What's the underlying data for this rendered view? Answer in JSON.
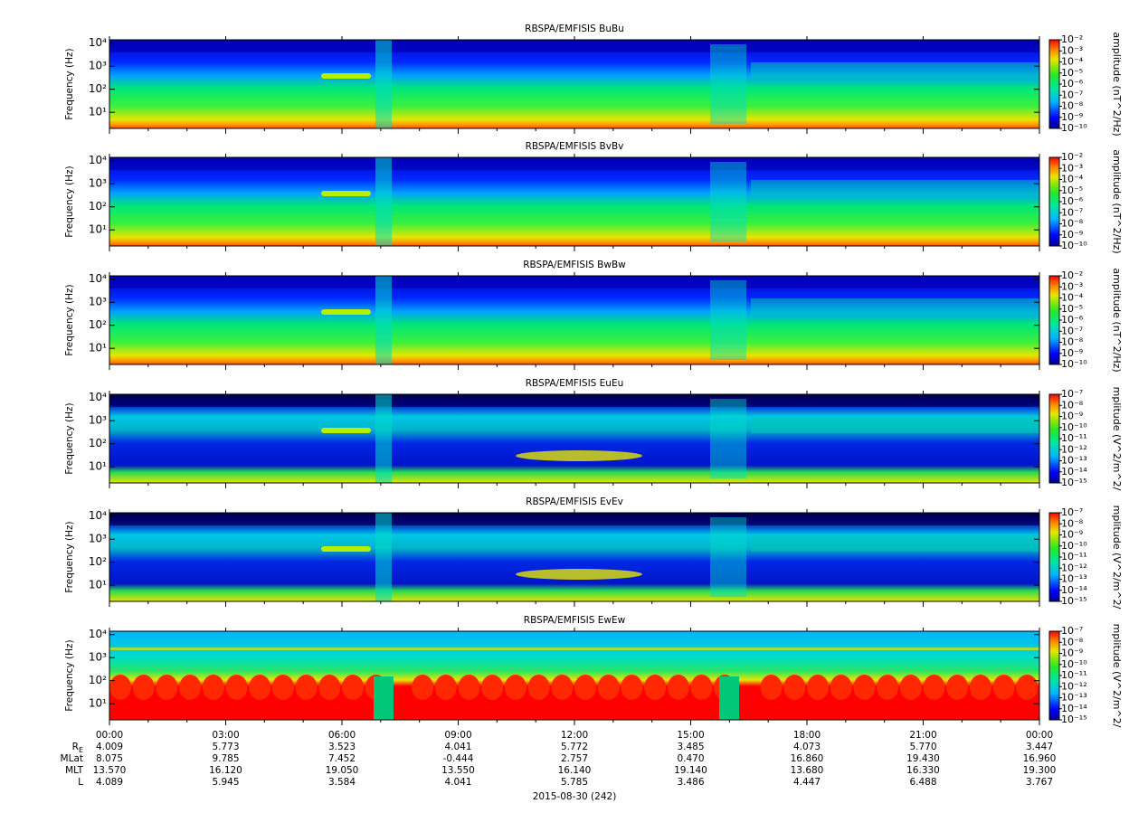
{
  "chart_data": [
    {
      "type": "spectrogram",
      "title": "RBSPA/EMFISIS  BuBu",
      "ylabel": "Frequency (Hz)",
      "ylim": [
        2,
        14000
      ],
      "log": true,
      "yticks": [
        {
          "value": 10,
          "label": "10¹"
        },
        {
          "value": 100,
          "label": "10²"
        },
        {
          "value": 1000,
          "label": "10³"
        },
        {
          "value": 10000,
          "label": "10⁴"
        }
      ],
      "colorbar": {
        "label": "amplitude (nT^2/Hz)",
        "zlim": [
          1e-10,
          0.01
        ],
        "log": true,
        "zticks": [
          {
            "value": 0.01,
            "label": "10⁻²"
          },
          {
            "value": 0.001,
            "label": "10⁻³"
          },
          {
            "value": 0.0001,
            "label": "10⁻⁴"
          },
          {
            "value": 1e-05,
            "label": "10⁻⁵"
          },
          {
            "value": 1e-06,
            "label": "10⁻⁶"
          },
          {
            "value": 1e-07,
            "label": "10⁻⁷"
          },
          {
            "value": 1e-08,
            "label": "10⁻⁸"
          },
          {
            "value": 1e-09,
            "label": "10⁻⁹"
          },
          {
            "value": 1e-10,
            "label": "10⁻¹⁰"
          }
        ]
      }
    },
    {
      "type": "spectrogram",
      "title": "RBSPA/EMFISIS  BvBv",
      "ylabel": "Frequency (Hz)",
      "ylim": [
        2,
        14000
      ],
      "log": true,
      "yticks": [
        {
          "value": 10,
          "label": "10¹"
        },
        {
          "value": 100,
          "label": "10²"
        },
        {
          "value": 1000,
          "label": "10³"
        },
        {
          "value": 10000,
          "label": "10⁴"
        }
      ],
      "colorbar": {
        "label": "amplitude (nT^2/Hz)",
        "zlim": [
          1e-10,
          0.01
        ],
        "log": true,
        "zticks": [
          {
            "value": 0.01,
            "label": "10⁻²"
          },
          {
            "value": 0.001,
            "label": "10⁻³"
          },
          {
            "value": 0.0001,
            "label": "10⁻⁴"
          },
          {
            "value": 1e-05,
            "label": "10⁻⁵"
          },
          {
            "value": 1e-06,
            "label": "10⁻⁶"
          },
          {
            "value": 1e-07,
            "label": "10⁻⁷"
          },
          {
            "value": 1e-08,
            "label": "10⁻⁸"
          },
          {
            "value": 1e-09,
            "label": "10⁻⁹"
          },
          {
            "value": 1e-10,
            "label": "10⁻¹⁰"
          }
        ]
      }
    },
    {
      "type": "spectrogram",
      "title": "RBSPA/EMFISIS  BwBw",
      "ylabel": "Frequency (Hz)",
      "ylim": [
        2,
        14000
      ],
      "log": true,
      "yticks": [
        {
          "value": 10,
          "label": "10¹"
        },
        {
          "value": 100,
          "label": "10²"
        },
        {
          "value": 1000,
          "label": "10³"
        },
        {
          "value": 10000,
          "label": "10⁴"
        }
      ],
      "colorbar": {
        "label": "amplitude (nT^2/Hz)",
        "zlim": [
          1e-10,
          0.01
        ],
        "log": true,
        "zticks": [
          {
            "value": 0.01,
            "label": "10⁻²"
          },
          {
            "value": 0.001,
            "label": "10⁻³"
          },
          {
            "value": 0.0001,
            "label": "10⁻⁴"
          },
          {
            "value": 1e-05,
            "label": "10⁻⁵"
          },
          {
            "value": 1e-06,
            "label": "10⁻⁶"
          },
          {
            "value": 1e-07,
            "label": "10⁻⁷"
          },
          {
            "value": 1e-08,
            "label": "10⁻⁸"
          },
          {
            "value": 1e-09,
            "label": "10⁻⁹"
          },
          {
            "value": 1e-10,
            "label": "10⁻¹⁰"
          }
        ]
      }
    },
    {
      "type": "spectrogram",
      "title": "RBSPA/EMFISIS  EuEu",
      "ylabel": "Frequency (Hz)",
      "ylim": [
        2,
        14000
      ],
      "log": true,
      "yticks": [
        {
          "value": 10,
          "label": "10¹"
        },
        {
          "value": 100,
          "label": "10²"
        },
        {
          "value": 1000,
          "label": "10³"
        },
        {
          "value": 10000,
          "label": "10⁴"
        }
      ],
      "colorbar": {
        "label": "mplitude (V^2/m^2/",
        "zlim": [
          1e-15,
          1e-07
        ],
        "log": true,
        "zticks": [
          {
            "value": 1e-07,
            "label": "10⁻⁷"
          },
          {
            "value": 1e-08,
            "label": "10⁻⁸"
          },
          {
            "value": 1e-09,
            "label": "10⁻⁹"
          },
          {
            "value": 1e-10,
            "label": "10⁻¹⁰"
          },
          {
            "value": 1e-11,
            "label": "10⁻¹¹"
          },
          {
            "value": 1e-12,
            "label": "10⁻¹²"
          },
          {
            "value": 1e-13,
            "label": "10⁻¹³"
          },
          {
            "value": 1e-14,
            "label": "10⁻¹⁴"
          },
          {
            "value": 1e-15,
            "label": "10⁻¹⁵"
          }
        ]
      }
    },
    {
      "type": "spectrogram",
      "title": "RBSPA/EMFISIS  EvEv",
      "ylabel": "Frequency (Hz)",
      "ylim": [
        2,
        14000
      ],
      "log": true,
      "yticks": [
        {
          "value": 10,
          "label": "10¹"
        },
        {
          "value": 100,
          "label": "10²"
        },
        {
          "value": 1000,
          "label": "10³"
        },
        {
          "value": 10000,
          "label": "10⁴"
        }
      ],
      "colorbar": {
        "label": "mplitude (V^2/m^2/",
        "zlim": [
          1e-15,
          1e-07
        ],
        "log": true,
        "zticks": [
          {
            "value": 1e-07,
            "label": "10⁻⁷"
          },
          {
            "value": 1e-08,
            "label": "10⁻⁸"
          },
          {
            "value": 1e-09,
            "label": "10⁻⁹"
          },
          {
            "value": 1e-10,
            "label": "10⁻¹⁰"
          },
          {
            "value": 1e-11,
            "label": "10⁻¹¹"
          },
          {
            "value": 1e-12,
            "label": "10⁻¹²"
          },
          {
            "value": 1e-13,
            "label": "10⁻¹³"
          },
          {
            "value": 1e-14,
            "label": "10⁻¹⁴"
          },
          {
            "value": 1e-15,
            "label": "10⁻¹⁵"
          }
        ]
      }
    },
    {
      "type": "spectrogram",
      "title": "RBSPA/EMFISIS  EwEw",
      "ylabel": "Frequency (Hz)",
      "ylim": [
        2,
        14000
      ],
      "log": true,
      "yticks": [
        {
          "value": 10,
          "label": "10¹"
        },
        {
          "value": 100,
          "label": "10²"
        },
        {
          "value": 1000,
          "label": "10³"
        },
        {
          "value": 10000,
          "label": "10⁴"
        }
      ],
      "colorbar": {
        "label": "mplitude (V^2/m^2/",
        "zlim": [
          1e-15,
          1e-07
        ],
        "log": true,
        "zticks": [
          {
            "value": 1e-07,
            "label": "10⁻⁷"
          },
          {
            "value": 1e-08,
            "label": "10⁻⁸"
          },
          {
            "value": 1e-09,
            "label": "10⁻⁹"
          },
          {
            "value": 1e-10,
            "label": "10⁻¹⁰"
          },
          {
            "value": 1e-11,
            "label": "10⁻¹¹"
          },
          {
            "value": 1e-12,
            "label": "10⁻¹²"
          },
          {
            "value": 1e-13,
            "label": "10⁻¹³"
          },
          {
            "value": 1e-14,
            "label": "10⁻¹⁴"
          },
          {
            "value": 1e-15,
            "label": "10⁻¹⁵"
          }
        ]
      }
    }
  ],
  "x_axis": {
    "xlabel": "2015-08-30 (242)",
    "xlim": [
      0,
      24
    ],
    "xticks": [
      {
        "value": 0,
        "label": "00:00"
      },
      {
        "value": 3,
        "label": "03:00"
      },
      {
        "value": 6,
        "label": "06:00"
      },
      {
        "value": 9,
        "label": "09:00"
      },
      {
        "value": 12,
        "label": "12:00"
      },
      {
        "value": 15,
        "label": "15:00"
      },
      {
        "value": 18,
        "label": "18:00"
      },
      {
        "value": 21,
        "label": "21:00"
      },
      {
        "value": 24,
        "label": "00:00"
      }
    ],
    "ephemeris": [
      {
        "label": "R",
        "subscript": "E",
        "values": [
          "4.009",
          "5.773",
          "3.523",
          "4.041",
          "5.772",
          "3.485",
          "4.073",
          "5.770",
          "3.447"
        ]
      },
      {
        "label": "MLat",
        "values": [
          "8.075",
          "9.785",
          "7.452",
          "-0.444",
          "2.757",
          "0.470",
          "16.860",
          "19.430",
          "16.960"
        ]
      },
      {
        "label": "MLT",
        "values": [
          "13.570",
          "16.120",
          "19.050",
          "13.550",
          "16.140",
          "19.140",
          "13.680",
          "16.330",
          "19.300"
        ]
      },
      {
        "label": "L",
        "values": [
          "4.089",
          "5.945",
          "3.584",
          "4.041",
          "5.785",
          "3.486",
          "4.447",
          "6.488",
          "3.767"
        ]
      }
    ]
  }
}
